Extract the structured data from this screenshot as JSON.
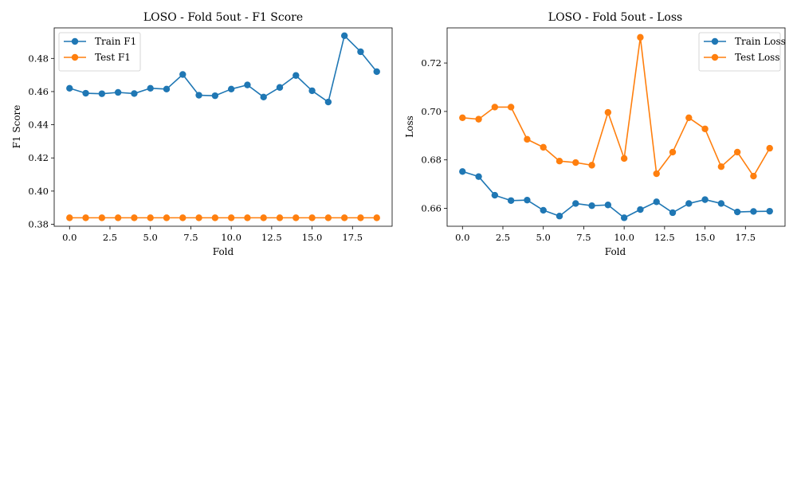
{
  "chart_data": [
    {
      "type": "line",
      "title": "LOSO - Fold 5out - F1 Score",
      "xlabel": "Fold",
      "ylabel": "F1 Score",
      "xlim": [
        -0.95,
        19.95
      ],
      "ylim": [
        0.3788,
        0.4984
      ],
      "xticks": [
        0.0,
        2.5,
        5.0,
        7.5,
        10.0,
        12.5,
        15.0,
        17.5
      ],
      "xtick_labels": [
        "0.0",
        "2.5",
        "5.0",
        "7.5",
        "10.0",
        "12.5",
        "15.0",
        "17.5"
      ],
      "yticks": [
        0.38,
        0.4,
        0.42,
        0.44,
        0.46,
        0.48
      ],
      "ytick_labels": [
        "0.38",
        "0.40",
        "0.42",
        "0.44",
        "0.46",
        "0.48"
      ],
      "legend_position": "top-left",
      "grid": false,
      "x": [
        0,
        1,
        2,
        3,
        4,
        5,
        6,
        7,
        8,
        9,
        10,
        11,
        12,
        13,
        14,
        15,
        16,
        17,
        18,
        19
      ],
      "series": [
        {
          "name": "Train F1",
          "color": "#1f77b4",
          "values": [
            0.462,
            0.459,
            0.4587,
            0.4595,
            0.4588,
            0.462,
            0.4615,
            0.4703,
            0.4578,
            0.4575,
            0.4615,
            0.464,
            0.4567,
            0.4625,
            0.4697,
            0.4605,
            0.4537,
            0.4937,
            0.484,
            0.472
          ]
        },
        {
          "name": "Test F1",
          "color": "#ff7f0e",
          "values": [
            0.3839,
            0.3839,
            0.3839,
            0.3839,
            0.3839,
            0.3839,
            0.3839,
            0.3839,
            0.3839,
            0.3839,
            0.3839,
            0.3839,
            0.3839,
            0.3839,
            0.3839,
            0.3839,
            0.3839,
            0.3839,
            0.3839,
            0.3839
          ]
        }
      ]
    },
    {
      "type": "line",
      "title": "LOSO - Fold 5out - Loss",
      "xlabel": "Fold",
      "ylabel": "Loss",
      "xlim": [
        -0.95,
        19.95
      ],
      "ylim": [
        0.6526,
        0.7345
      ],
      "xticks": [
        0.0,
        2.5,
        5.0,
        7.5,
        10.0,
        12.5,
        15.0,
        17.5
      ],
      "xtick_labels": [
        "0.0",
        "2.5",
        "5.0",
        "7.5",
        "10.0",
        "12.5",
        "15.0",
        "17.5"
      ],
      "yticks": [
        0.66,
        0.68,
        0.7,
        0.72
      ],
      "ytick_labels": [
        "0.66",
        "0.68",
        "0.70",
        "0.72"
      ],
      "legend_position": "top-right",
      "grid": false,
      "x": [
        0,
        1,
        2,
        3,
        4,
        5,
        6,
        7,
        8,
        9,
        10,
        11,
        12,
        13,
        14,
        15,
        16,
        17,
        18,
        19
      ],
      "series": [
        {
          "name": "Train Loss",
          "color": "#1f77b4",
          "values": [
            0.6752,
            0.6731,
            0.6654,
            0.6632,
            0.6634,
            0.6592,
            0.6568,
            0.662,
            0.6611,
            0.6614,
            0.6561,
            0.6595,
            0.6627,
            0.6582,
            0.662,
            0.6636,
            0.662,
            0.6585,
            0.6587,
            0.6588
          ]
        },
        {
          "name": "Test Loss",
          "color": "#ff7f0e",
          "values": [
            0.6974,
            0.6968,
            0.7018,
            0.7018,
            0.6885,
            0.6852,
            0.6795,
            0.6789,
            0.6778,
            0.6996,
            0.6806,
            0.7306,
            0.6743,
            0.6832,
            0.6974,
            0.6928,
            0.6772,
            0.6832,
            0.6733,
            0.6848
          ]
        }
      ]
    }
  ]
}
